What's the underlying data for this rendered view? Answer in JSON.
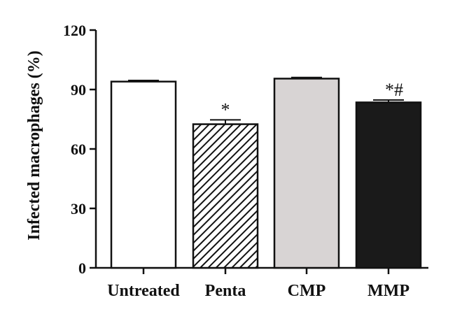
{
  "chart_data": {
    "type": "bar",
    "title": "",
    "xlabel": "",
    "ylabel": "Infected macrophages (%)",
    "ylim": [
      0,
      120
    ],
    "yticks": [
      0,
      30,
      60,
      90,
      120
    ],
    "grid": false,
    "categories": [
      "Untreated",
      "Penta",
      "CMP",
      "MMP"
    ],
    "values": [
      94,
      72.5,
      95.5,
      83.5
    ],
    "errors": [
      0.6,
      2.2,
      0.6,
      1.2
    ],
    "fills": [
      "#ffffff",
      "hatch",
      "#d8d4d4",
      "#1a1a1a"
    ],
    "annotations": [
      "",
      "*",
      "",
      "*#"
    ]
  }
}
